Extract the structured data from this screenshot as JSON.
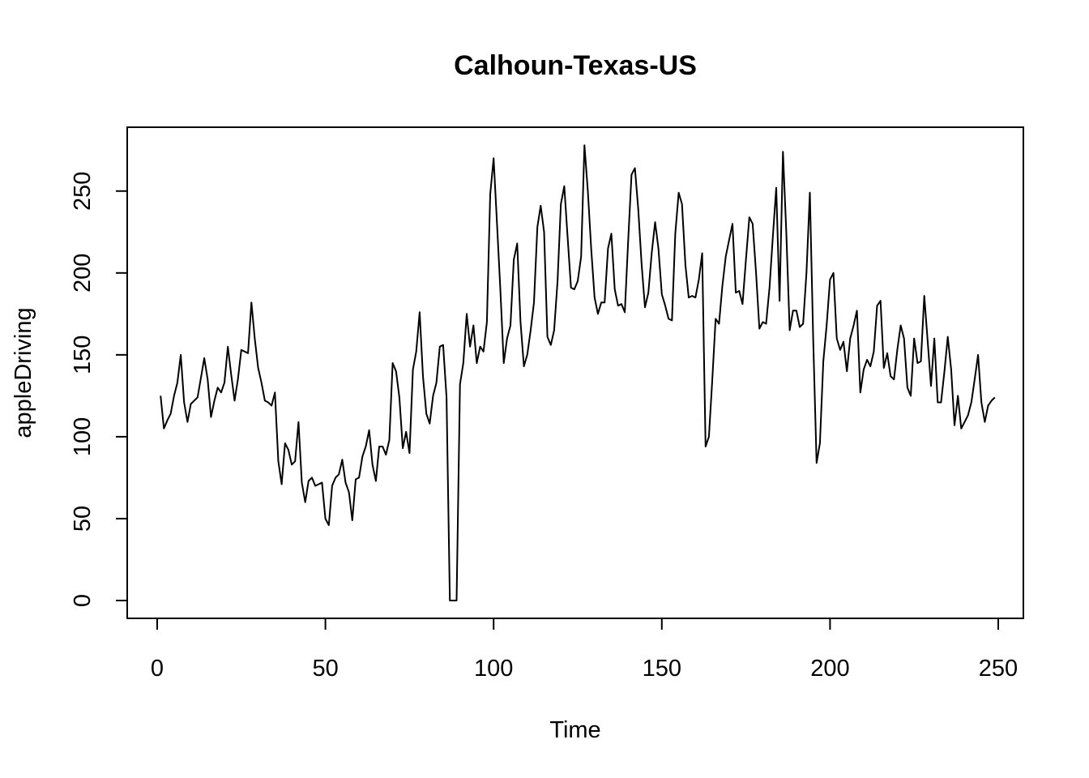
{
  "chart_data": {
    "type": "line",
    "title": "Calhoun-Texas-US",
    "xlabel": "Time",
    "ylabel": "appleDriving",
    "xlim": [
      0,
      250
    ],
    "ylim": [
      0,
      275
    ],
    "xticks": [
      0,
      50,
      100,
      150,
      200,
      250
    ],
    "yticks": [
      0,
      50,
      100,
      150,
      200,
      250
    ],
    "grid": false,
    "line_color": "#000000",
    "series": [
      {
        "x_start": 1,
        "values": [
          125,
          105,
          110,
          114,
          125,
          133,
          150,
          121,
          109,
          120,
          122,
          124,
          136,
          148,
          135,
          112,
          122,
          130,
          127,
          133,
          155,
          138,
          122,
          135,
          153,
          152,
          151,
          182,
          160,
          142,
          133,
          122,
          121,
          119,
          127,
          85,
          71,
          96,
          92,
          83,
          85,
          109,
          72,
          60,
          73,
          75,
          70,
          71,
          72,
          50,
          46,
          70,
          75,
          77,
          86,
          72,
          66,
          49,
          74,
          75,
          88,
          94,
          104,
          83,
          73,
          94,
          94,
          89,
          98,
          145,
          140,
          124,
          93,
          103,
          90,
          141,
          152,
          176,
          137,
          114,
          108,
          125,
          133,
          155,
          156,
          124,
          0,
          0,
          0,
          132,
          145,
          175,
          155,
          168,
          145,
          155,
          152,
          170,
          248,
          270,
          230,
          190,
          145,
          160,
          168,
          208,
          218,
          170,
          143,
          150,
          165,
          182,
          228,
          241,
          225,
          161,
          156,
          165,
          195,
          242,
          253,
          222,
          191,
          190,
          195,
          210,
          278,
          250,
          215,
          185,
          175,
          182,
          182,
          215,
          224,
          190,
          180,
          181,
          176,
          220,
          260,
          264,
          239,
          205,
          179,
          188,
          212,
          231,
          215,
          187,
          180,
          172,
          171,
          224,
          249,
          242,
          205,
          185,
          186,
          185,
          196,
          212,
          94,
          100,
          135,
          172,
          169,
          192,
          210,
          220,
          230,
          188,
          189,
          181,
          208,
          234,
          230,
          200,
          166,
          170,
          169,
          191,
          222,
          252,
          183,
          274,
          225,
          165,
          177,
          177,
          167,
          169,
          200,
          249,
          160,
          84,
          96,
          146,
          168,
          196,
          200,
          160,
          153,
          158,
          140,
          160,
          168,
          177,
          127,
          141,
          147,
          143,
          152,
          180,
          183,
          142,
          151,
          137,
          135,
          153,
          168,
          160,
          130,
          125,
          160,
          145,
          146,
          186,
          159,
          131,
          160,
          121,
          121,
          140,
          161,
          141,
          107,
          125,
          105,
          109,
          113,
          121,
          135,
          150,
          121,
          109,
          119,
          122,
          124
        ]
      }
    ]
  }
}
